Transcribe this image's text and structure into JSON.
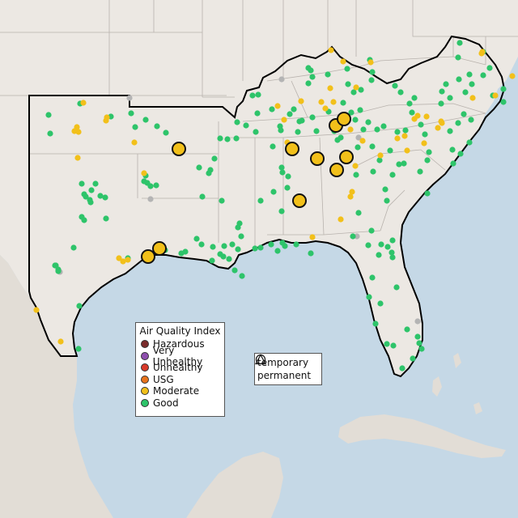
{
  "colors": {
    "ocean": "#c5d8e6",
    "land": "#ece8e3",
    "mexico_land": "#e2ddd6",
    "state_border": "#b8b2ad",
    "region_outline": "#000000",
    "good": "#2ec46a",
    "moderate": "#f2c01a",
    "usg": "#e8731c",
    "unhealthy": "#d93a2a",
    "very_unhealthy": "#8e4fae",
    "hazardous": "#7a2b2b",
    "no_data": "#b4b4b4"
  },
  "legend": {
    "title": "Air Quality Index",
    "items": [
      {
        "label": "Hazardous",
        "color": "#7a2b2b"
      },
      {
        "label": "Very Unhealthy",
        "color": "#8e4fae"
      },
      {
        "label": "Unhealthy",
        "color": "#d93a2a"
      },
      {
        "label": "USG",
        "color": "#e8731c"
      },
      {
        "label": "Moderate",
        "color": "#f2c01a"
      },
      {
        "label": "Good",
        "color": "#2ec46a"
      }
    ]
  },
  "monitor_types": [
    {
      "label": "temporary",
      "shape": "circle"
    },
    {
      "label": "permanent",
      "shape": "triangle"
    }
  ]
}
